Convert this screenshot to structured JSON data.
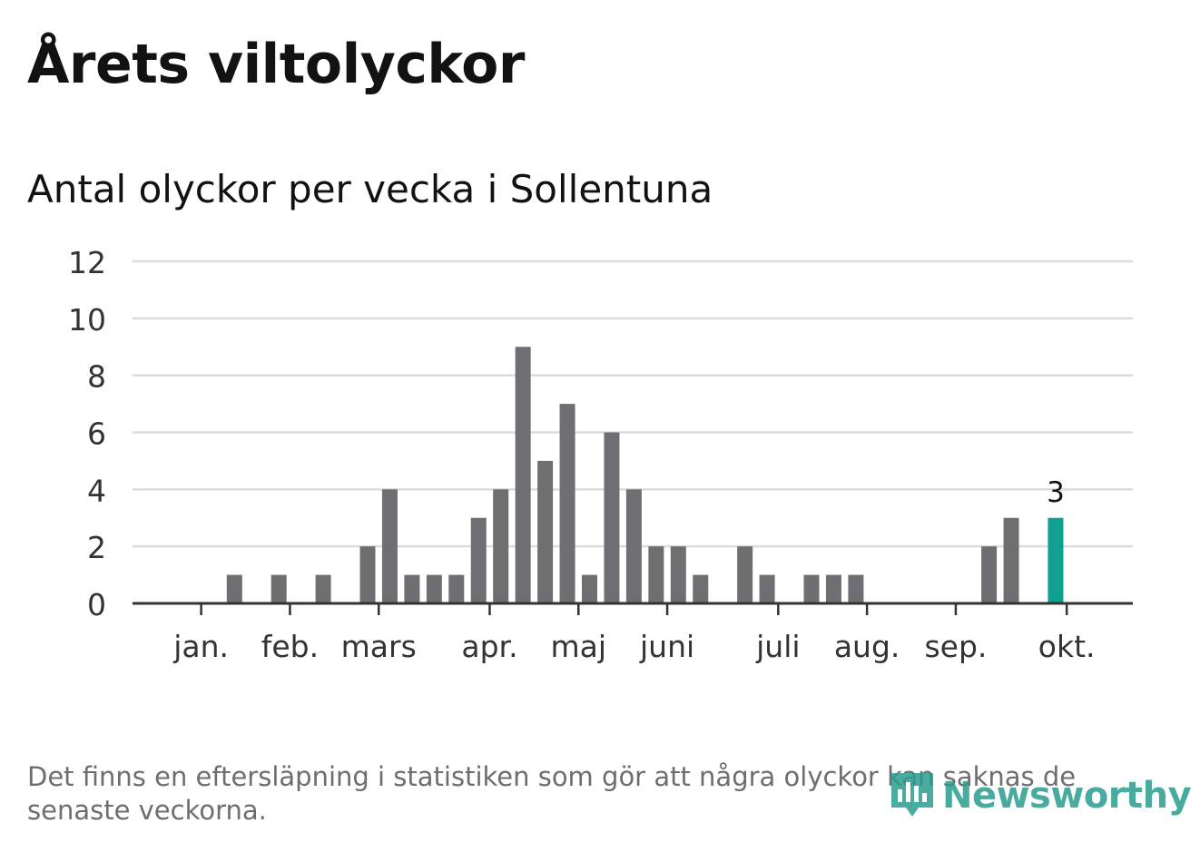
{
  "chart_data": {
    "type": "bar",
    "title": "Årets viltolyckor",
    "subtitle": "Antal olyckor per vecka i Sollentuna",
    "xlabel": "",
    "ylabel": "",
    "ylim": [
      0,
      12
    ],
    "yticks": [
      "0",
      "2",
      "4",
      "6",
      "8",
      "10",
      "12"
    ],
    "grid": true,
    "weeks": [
      1,
      2,
      3,
      4,
      5,
      6,
      7,
      8,
      9,
      10,
      11,
      12,
      13,
      14,
      15,
      16,
      17,
      18,
      19,
      20,
      21,
      22,
      23,
      24,
      25,
      26,
      27,
      28,
      29,
      30,
      31,
      32,
      33,
      34,
      35,
      36,
      37,
      38,
      39,
      40,
      41,
      42
    ],
    "values": [
      0,
      0,
      0,
      0,
      1,
      0,
      1,
      0,
      1,
      0,
      2,
      4,
      1,
      1,
      1,
      3,
      4,
      9,
      5,
      7,
      1,
      6,
      4,
      2,
      2,
      1,
      0,
      2,
      1,
      0,
      1,
      1,
      1,
      0,
      0,
      0,
      0,
      0,
      2,
      3,
      0,
      3
    ],
    "highlight_index": 41,
    "highlight_label": "3",
    "month_labels": [
      {
        "label": "jan.",
        "week": 3.5
      },
      {
        "label": "feb.",
        "week": 7.5
      },
      {
        "label": "mars",
        "week": 11.5
      },
      {
        "label": "apr.",
        "week": 16.5
      },
      {
        "label": "maj",
        "week": 20.5
      },
      {
        "label": "juni",
        "week": 24.5
      },
      {
        "label": "juli",
        "week": 29.5
      },
      {
        "label": "aug.",
        "week": 33.5
      },
      {
        "label": "sep.",
        "week": 37.5
      },
      {
        "label": "okt.",
        "week": 42.5
      }
    ],
    "colors": {
      "bar": "#6f6e73",
      "highlight": "#0fa08f",
      "grid": "#dcdcdc",
      "axis": "#333333",
      "tick_text": "#333333"
    }
  },
  "footer": {
    "note": "Det finns en eftersläpning i statistiken som gör att några olyckor kan saknas de senaste veckorna.",
    "brand": "Newsworthy"
  }
}
